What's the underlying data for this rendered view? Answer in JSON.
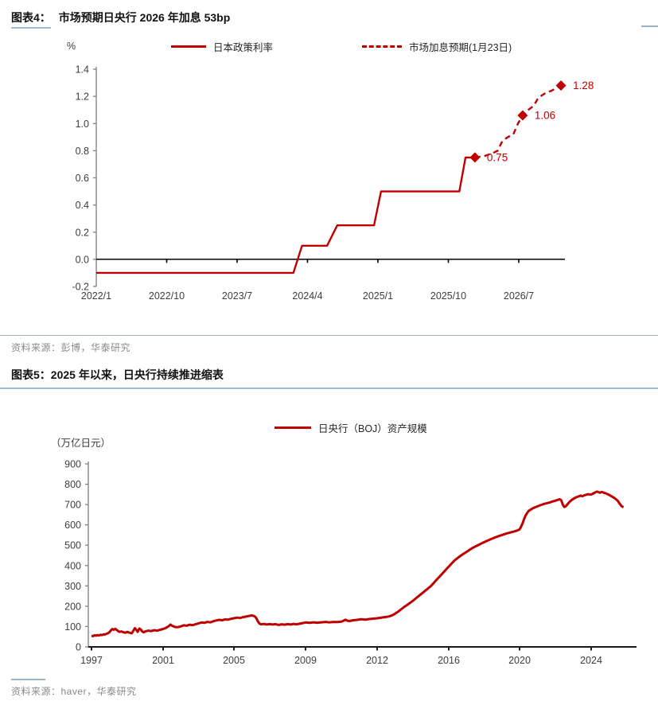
{
  "colors": {
    "series_red": "#c00000",
    "axis_gray": "#808080",
    "baseline_black": "#1a1a1a",
    "tick_text": "#3d3d3d",
    "rule_blue": "#9dbbd4",
    "source_gray": "#8a8a8a"
  },
  "figure4": {
    "label": "图表4：",
    "title": "市场预期日央行 2026 年加息 53bp",
    "unit": "%",
    "legend": [
      "日本政策利率",
      "市场加息预期(1月23日)"
    ],
    "source": "资料来源：彭博，华泰研究"
  },
  "figure5": {
    "label": "图表5：",
    "title": "2025 年以来，日央行持续推进缩表",
    "unit": "（万亿日元）",
    "legend": [
      "日央行（BOJ）资产规模"
    ],
    "source": "资料来源：haver，华泰研究"
  },
  "chart_data": [
    {
      "type": "line",
      "title": "市场预期日央行 2026 年加息 53bp",
      "ylabel": "%",
      "ylim": [
        -0.2,
        1.4
      ],
      "y_tick_labels": [
        "1.4",
        "1.2",
        "1.0",
        "0.8",
        "0.6",
        "0.4",
        "0.2",
        "0.0",
        "-0.2"
      ],
      "x_tick_labels": [
        "2022/1",
        "2022/10",
        "2023/7",
        "2024/4",
        "2025/1",
        "2025/10",
        "2026/7"
      ],
      "x_tick_values": [
        0,
        9,
        18,
        27,
        36,
        45,
        54
      ],
      "x_unit": "months since 2022/1",
      "legend_position": "top",
      "grid": false,
      "series": [
        {
          "name": "日本政策利率",
          "style": "solid",
          "points": [
            [
              0,
              -0.1
            ],
            [
              25.2,
              -0.1
            ],
            [
              26.3,
              0.1
            ],
            [
              29.5,
              0.1
            ],
            [
              30.8,
              0.25
            ],
            [
              35.5,
              0.25
            ],
            [
              36.4,
              0.5
            ],
            [
              46.4,
              0.5
            ],
            [
              47.2,
              0.75
            ],
            [
              48.4,
              0.75
            ]
          ]
        },
        {
          "name": "市场加息预期(1月23日)",
          "style": "dashed",
          "points": [
            [
              48.4,
              0.75
            ],
            [
              49.6,
              0.76
            ],
            [
              50.6,
              0.78
            ],
            [
              51.3,
              0.8
            ],
            [
              51.9,
              0.87
            ],
            [
              52.6,
              0.9
            ],
            [
              53.3,
              0.92
            ],
            [
              53.9,
              1.0
            ],
            [
              54.5,
              1.06
            ],
            [
              55.2,
              1.1
            ],
            [
              55.9,
              1.13
            ],
            [
              56.5,
              1.19
            ],
            [
              57.3,
              1.22
            ],
            [
              58.1,
              1.24
            ],
            [
              58.8,
              1.26
            ],
            [
              59.4,
              1.28
            ]
          ],
          "markers": [
            {
              "x": 48.4,
              "value": 0.75,
              "label": "0.75"
            },
            {
              "x": 54.5,
              "value": 1.06,
              "label": "1.06"
            },
            {
              "x": 59.4,
              "value": 1.28,
              "label": "1.28"
            }
          ]
        }
      ]
    },
    {
      "type": "line",
      "title": "2025 年以来，日央行持续推进缩表",
      "ylabel": "（万亿日元）",
      "ylim": [
        0,
        900
      ],
      "y_tick_labels": [
        "900",
        "800",
        "700",
        "600",
        "500",
        "400",
        "300",
        "200",
        "100",
        "0"
      ],
      "x_tick_labels": [
        "1997",
        "2001",
        "2005",
        "2009",
        "2012",
        "2016",
        "2020",
        "2024"
      ],
      "x_tick_values": [
        1997,
        2001,
        2005,
        2009,
        2012,
        2016,
        2020,
        2024
      ],
      "x_unit": "year",
      "legend_position": "top",
      "grid": false,
      "series": [
        {
          "name": "日央行（BOJ）资产规模",
          "style": "solid",
          "points": [
            [
              1997.0,
              55
            ],
            [
              1997.08,
              53
            ],
            [
              1997.17,
              57
            ],
            [
              1997.25,
              55
            ],
            [
              1997.33,
              58
            ],
            [
              1997.42,
              56
            ],
            [
              1997.5,
              60
            ],
            [
              1997.58,
              58
            ],
            [
              1997.67,
              62
            ],
            [
              1997.75,
              61
            ],
            [
              1997.83,
              64
            ],
            [
              1997.92,
              67
            ],
            [
              1998.0,
              72
            ],
            [
              1998.08,
              81
            ],
            [
              1998.17,
              88
            ],
            [
              1998.25,
              84
            ],
            [
              1998.33,
              89
            ],
            [
              1998.42,
              82
            ],
            [
              1998.5,
              77
            ],
            [
              1998.58,
              74
            ],
            [
              1998.67,
              76
            ],
            [
              1998.75,
              73
            ],
            [
              1998.83,
              71
            ],
            [
              1998.92,
              70
            ],
            [
              1999.0,
              74
            ],
            [
              1999.08,
              71
            ],
            [
              1999.17,
              69
            ],
            [
              1999.25,
              67
            ],
            [
              1999.33,
              78
            ],
            [
              1999.42,
              92
            ],
            [
              1999.5,
              84
            ],
            [
              1999.58,
              74
            ],
            [
              1999.67,
              90
            ],
            [
              1999.75,
              86
            ],
            [
              1999.83,
              76
            ],
            [
              1999.92,
              72
            ],
            [
              2000.0,
              76
            ],
            [
              2000.17,
              80
            ],
            [
              2000.33,
              78
            ],
            [
              2000.5,
              82
            ],
            [
              2000.67,
              80
            ],
            [
              2000.83,
              84
            ],
            [
              2001.0,
              88
            ],
            [
              2001.17,
              94
            ],
            [
              2001.33,
              103
            ],
            [
              2001.42,
              110
            ],
            [
              2001.5,
              104
            ],
            [
              2001.67,
              98
            ],
            [
              2001.83,
              97
            ],
            [
              2002.0,
              101
            ],
            [
              2002.17,
              106
            ],
            [
              2002.33,
              104
            ],
            [
              2002.5,
              109
            ],
            [
              2002.67,
              107
            ],
            [
              2002.83,
              111
            ],
            [
              2003.0,
              116
            ],
            [
              2003.17,
              120
            ],
            [
              2003.33,
              118
            ],
            [
              2003.5,
              123
            ],
            [
              2003.67,
              121
            ],
            [
              2003.83,
              126
            ],
            [
              2004.0,
              130
            ],
            [
              2004.17,
              133
            ],
            [
              2004.33,
              131
            ],
            [
              2004.5,
              135
            ],
            [
              2004.67,
              134
            ],
            [
              2004.83,
              138
            ],
            [
              2005.0,
              141
            ],
            [
              2005.17,
              144
            ],
            [
              2005.33,
              142
            ],
            [
              2005.5,
              146
            ],
            [
              2005.67,
              149
            ],
            [
              2005.83,
              152
            ],
            [
              2006.0,
              155
            ],
            [
              2006.08,
              153
            ],
            [
              2006.17,
              150
            ],
            [
              2006.25,
              142
            ],
            [
              2006.33,
              127
            ],
            [
              2006.42,
              115
            ],
            [
              2006.5,
              111
            ],
            [
              2006.67,
              113
            ],
            [
              2006.83,
              110
            ],
            [
              2007.0,
              112
            ],
            [
              2007.17,
              110
            ],
            [
              2007.33,
              112
            ],
            [
              2007.5,
              108
            ],
            [
              2007.67,
              111
            ],
            [
              2007.83,
              109
            ],
            [
              2008.0,
              112
            ],
            [
              2008.17,
              110
            ],
            [
              2008.33,
              113
            ],
            [
              2008.5,
              111
            ],
            [
              2008.67,
              114
            ],
            [
              2008.83,
              117
            ],
            [
              2009.0,
              120
            ],
            [
              2009.17,
              118
            ],
            [
              2009.33,
              121
            ],
            [
              2009.5,
              119
            ],
            [
              2009.67,
              121
            ],
            [
              2009.83,
              123
            ],
            [
              2010.0,
              121
            ],
            [
              2010.17,
              123
            ],
            [
              2010.33,
              122
            ],
            [
              2010.5,
              124
            ],
            [
              2010.58,
              128
            ],
            [
              2010.67,
              134
            ],
            [
              2010.75,
              129
            ],
            [
              2010.83,
              127
            ],
            [
              2010.92,
              129
            ],
            [
              2011.0,
              131
            ],
            [
              2011.17,
              133
            ],
            [
              2011.33,
              136
            ],
            [
              2011.5,
              134
            ],
            [
              2011.67,
              137
            ],
            [
              2011.83,
              139
            ],
            [
              2012.0,
              141
            ],
            [
              2012.17,
              143
            ],
            [
              2012.33,
              145
            ],
            [
              2012.5,
              147
            ],
            [
              2012.67,
              150
            ],
            [
              2012.83,
              155
            ],
            [
              2013.0,
              163
            ],
            [
              2013.17,
              173
            ],
            [
              2013.33,
              184
            ],
            [
              2013.5,
              196
            ],
            [
              2013.67,
              206
            ],
            [
              2013.83,
              216
            ],
            [
              2014.0,
              227
            ],
            [
              2014.17,
              239
            ],
            [
              2014.33,
              251
            ],
            [
              2014.5,
              263
            ],
            [
              2014.67,
              275
            ],
            [
              2014.83,
              287
            ],
            [
              2015.0,
              299
            ],
            [
              2015.17,
              315
            ],
            [
              2015.33,
              331
            ],
            [
              2015.5,
              347
            ],
            [
              2015.67,
              363
            ],
            [
              2015.83,
              379
            ],
            [
              2016.0,
              395
            ],
            [
              2016.17,
              411
            ],
            [
              2016.33,
              425
            ],
            [
              2016.5,
              437
            ],
            [
              2016.67,
              448
            ],
            [
              2016.83,
              458
            ],
            [
              2017.0,
              467
            ],
            [
              2017.17,
              477
            ],
            [
              2017.33,
              486
            ],
            [
              2017.5,
              494
            ],
            [
              2017.67,
              501
            ],
            [
              2017.83,
              508
            ],
            [
              2018.0,
              515
            ],
            [
              2018.17,
              522
            ],
            [
              2018.33,
              528
            ],
            [
              2018.5,
              534
            ],
            [
              2018.67,
              540
            ],
            [
              2018.83,
              545
            ],
            [
              2019.0,
              550
            ],
            [
              2019.17,
              555
            ],
            [
              2019.33,
              559
            ],
            [
              2019.5,
              563
            ],
            [
              2019.67,
              567
            ],
            [
              2019.83,
              571
            ],
            [
              2020.0,
              578
            ],
            [
              2020.08,
              590
            ],
            [
              2020.17,
              608
            ],
            [
              2020.25,
              628
            ],
            [
              2020.33,
              645
            ],
            [
              2020.42,
              658
            ],
            [
              2020.5,
              668
            ],
            [
              2020.67,
              678
            ],
            [
              2020.83,
              685
            ],
            [
              2021.0,
              691
            ],
            [
              2021.17,
              697
            ],
            [
              2021.33,
              702
            ],
            [
              2021.5,
              706
            ],
            [
              2021.67,
              710
            ],
            [
              2021.83,
              715
            ],
            [
              2022.0,
              719
            ],
            [
              2022.17,
              724
            ],
            [
              2022.25,
              726
            ],
            [
              2022.33,
              721
            ],
            [
              2022.42,
              698
            ],
            [
              2022.5,
              688
            ],
            [
              2022.58,
              691
            ],
            [
              2022.67,
              701
            ],
            [
              2022.83,
              717
            ],
            [
              2023.0,
              728
            ],
            [
              2023.17,
              736
            ],
            [
              2023.33,
              741
            ],
            [
              2023.42,
              744
            ],
            [
              2023.5,
              741
            ],
            [
              2023.67,
              747
            ],
            [
              2023.83,
              751
            ],
            [
              2024.0,
              749
            ],
            [
              2024.17,
              757
            ],
            [
              2024.33,
              764
            ],
            [
              2024.42,
              761
            ],
            [
              2024.5,
              758
            ],
            [
              2024.58,
              762
            ],
            [
              2024.67,
              760
            ],
            [
              2024.83,
              755
            ],
            [
              2025.0,
              748
            ],
            [
              2025.17,
              740
            ],
            [
              2025.33,
              731
            ],
            [
              2025.5,
              719
            ],
            [
              2025.58,
              708
            ],
            [
              2025.67,
              697
            ],
            [
              2025.75,
              690
            ],
            [
              2025.83,
              687
            ]
          ]
        }
      ]
    }
  ]
}
